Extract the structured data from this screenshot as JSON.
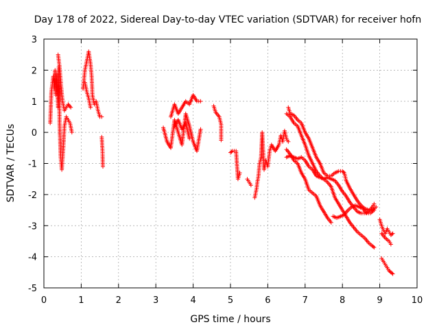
{
  "chart_data": {
    "type": "scatter",
    "title": "Day 178 of 2022, Sidereal Day-to-day VTEC variation (SDTVAR) for receiver hofn",
    "xlabel": "GPS time / hours",
    "ylabel": "SDTVAR / TECUs",
    "xlim": [
      0,
      10
    ],
    "ylim": [
      -5,
      3
    ],
    "x_ticks": [
      "0",
      "1",
      "2",
      "3",
      "4",
      "5",
      "6",
      "7",
      "8",
      "9",
      "10"
    ],
    "y_ticks": [
      "-5",
      "-4",
      "-3",
      "-2",
      "-1",
      "0",
      "1",
      "2",
      "3"
    ],
    "grid": true,
    "marker": "+",
    "series": [
      {
        "name": "SDTVAR",
        "color": "#ff0000",
        "segments": [
          [
            [
              0.17,
              0.3
            ],
            [
              0.2,
              1.3
            ],
            [
              0.22,
              1.5
            ],
            [
              0.25,
              1.8
            ],
            [
              0.28,
              1.4
            ],
            [
              0.3,
              2.0
            ],
            [
              0.32,
              1.2
            ],
            [
              0.35,
              1.9
            ],
            [
              0.38,
              0.8
            ],
            [
              0.4,
              2.1
            ],
            [
              0.42,
              0.3
            ],
            [
              0.45,
              -0.8
            ],
            [
              0.48,
              -1.2
            ],
            [
              0.52,
              -0.5
            ],
            [
              0.55,
              0.2
            ],
            [
              0.6,
              0.5
            ],
            [
              0.65,
              0.4
            ],
            [
              0.7,
              0.3
            ],
            [
              0.75,
              0.0
            ]
          ],
          [
            [
              0.38,
              2.5
            ],
            [
              0.42,
              2.1
            ],
            [
              0.46,
              1.5
            ],
            [
              0.5,
              1.0
            ],
            [
              0.55,
              0.7
            ],
            [
              0.6,
              0.8
            ],
            [
              0.65,
              0.9
            ],
            [
              0.72,
              0.8
            ]
          ],
          [
            [
              1.05,
              1.4
            ],
            [
              1.1,
              2.0
            ],
            [
              1.15,
              2.3
            ],
            [
              1.2,
              2.6
            ],
            [
              1.25,
              2.2
            ],
            [
              1.28,
              1.8
            ],
            [
              1.3,
              1.2
            ],
            [
              1.35,
              0.9
            ],
            [
              1.4,
              1.0
            ],
            [
              1.45,
              0.7
            ],
            [
              1.5,
              0.5
            ],
            [
              1.55,
              0.5
            ]
          ],
          [
            [
              1.1,
              1.6
            ],
            [
              1.15,
              1.3
            ],
            [
              1.2,
              1.1
            ],
            [
              1.25,
              0.8
            ]
          ],
          [
            [
              1.55,
              -0.15
            ],
            [
              1.57,
              -0.6
            ],
            [
              1.58,
              -1.1
            ]
          ],
          [
            [
              3.2,
              0.15
            ],
            [
              3.3,
              -0.3
            ],
            [
              3.4,
              -0.5
            ],
            [
              3.5,
              0.4
            ],
            [
              3.6,
              0.0
            ],
            [
              3.7,
              -0.4
            ],
            [
              3.8,
              0.6
            ],
            [
              3.9,
              0.2
            ],
            [
              4.0,
              -0.3
            ],
            [
              4.1,
              -0.6
            ],
            [
              4.2,
              0.1
            ]
          ],
          [
            [
              3.4,
              0.5
            ],
            [
              3.5,
              0.9
            ],
            [
              3.6,
              0.6
            ],
            [
              3.7,
              0.8
            ],
            [
              3.8,
              1.0
            ],
            [
              3.9,
              0.9
            ],
            [
              4.0,
              1.2
            ],
            [
              4.1,
              1.0
            ],
            [
              4.2,
              1.0
            ]
          ],
          [
            [
              3.5,
              0.2
            ],
            [
              3.6,
              0.4
            ],
            [
              3.7,
              0.1
            ],
            [
              3.8,
              0.3
            ],
            [
              3.9,
              -0.2
            ]
          ],
          [
            [
              4.55,
              0.85
            ],
            [
              4.6,
              0.65
            ],
            [
              4.7,
              0.5
            ],
            [
              4.75,
              0.25
            ],
            [
              4.75,
              -0.25
            ]
          ],
          [
            [
              5.0,
              -0.65
            ],
            [
              5.05,
              -0.6
            ],
            [
              5.15,
              -0.6
            ],
            [
              5.2,
              -1.5
            ],
            [
              5.25,
              -1.3
            ]
          ],
          [
            [
              5.45,
              -1.5
            ],
            [
              5.5,
              -1.6
            ],
            [
              5.55,
              -1.7
            ]
          ],
          [
            [
              5.65,
              -2.1
            ],
            [
              5.7,
              -1.8
            ],
            [
              5.72,
              -1.6
            ],
            [
              5.75,
              -1.4
            ],
            [
              5.78,
              -1.0
            ],
            [
              5.82,
              -0.8
            ],
            [
              5.85,
              0.0
            ],
            [
              5.9,
              -1.2
            ],
            [
              5.95,
              -0.9
            ],
            [
              6.0,
              -1.1
            ],
            [
              6.05,
              -0.6
            ],
            [
              6.1,
              -0.4
            ],
            [
              6.2,
              -0.6
            ],
            [
              6.3,
              -0.4
            ],
            [
              6.35,
              -0.1
            ],
            [
              6.4,
              -0.3
            ],
            [
              6.45,
              0.05
            ],
            [
              6.5,
              -0.2
            ],
            [
              6.55,
              -0.3
            ]
          ],
          [
            [
              6.5,
              0.6
            ],
            [
              6.6,
              0.5
            ],
            [
              6.7,
              0.3
            ],
            [
              6.8,
              0.2
            ],
            [
              6.9,
              -0.1
            ],
            [
              7.0,
              -0.4
            ],
            [
              7.1,
              -0.75
            ],
            [
              7.2,
              -1.0
            ],
            [
              7.3,
              -1.25
            ],
            [
              7.4,
              -1.4
            ],
            [
              7.5,
              -1.5
            ],
            [
              7.6,
              -1.6
            ],
            [
              7.7,
              -1.75
            ],
            [
              7.8,
              -2.1
            ],
            [
              7.9,
              -2.3
            ],
            [
              8.0,
              -2.5
            ],
            [
              8.1,
              -2.7
            ],
            [
              8.2,
              -2.9
            ],
            [
              8.3,
              -3.05
            ],
            [
              8.4,
              -3.2
            ],
            [
              8.5,
              -3.3
            ],
            [
              8.6,
              -3.4
            ],
            [
              8.7,
              -3.55
            ],
            [
              8.8,
              -3.65
            ],
            [
              8.85,
              -3.7
            ]
          ],
          [
            [
              6.55,
              0.8
            ],
            [
              6.6,
              0.6
            ],
            [
              6.7,
              0.55
            ],
            [
              6.8,
              0.4
            ],
            [
              6.9,
              0.3
            ],
            [
              7.0,
              0.0
            ],
            [
              7.1,
              -0.2
            ],
            [
              7.2,
              -0.5
            ],
            [
              7.3,
              -0.8
            ],
            [
              7.4,
              -1.0
            ],
            [
              7.5,
              -1.3
            ],
            [
              7.6,
              -1.4
            ],
            [
              7.7,
              -1.4
            ],
            [
              7.8,
              -1.3
            ],
            [
              7.9,
              -1.25
            ],
            [
              8.0,
              -1.25
            ],
            [
              8.05,
              -1.3
            ],
            [
              8.1,
              -1.55
            ],
            [
              8.2,
              -1.8
            ],
            [
              8.3,
              -2.0
            ],
            [
              8.4,
              -2.2
            ],
            [
              8.5,
              -2.35
            ],
            [
              8.6,
              -2.45
            ],
            [
              8.7,
              -2.5
            ],
            [
              8.8,
              -2.5
            ],
            [
              8.9,
              -2.4
            ]
          ],
          [
            [
              6.5,
              -0.8
            ],
            [
              6.6,
              -0.75
            ],
            [
              6.7,
              -0.8
            ],
            [
              6.8,
              -0.85
            ],
            [
              6.9,
              -0.8
            ],
            [
              7.0,
              -0.9
            ],
            [
              7.1,
              -1.1
            ],
            [
              7.2,
              -1.2
            ],
            [
              7.3,
              -1.4
            ],
            [
              7.4,
              -1.45
            ],
            [
              7.5,
              -1.5
            ],
            [
              7.6,
              -1.45
            ],
            [
              7.7,
              -1.5
            ],
            [
              7.8,
              -1.55
            ],
            [
              7.9,
              -1.7
            ],
            [
              8.0,
              -1.9
            ],
            [
              8.1,
              -2.05
            ],
            [
              8.2,
              -2.25
            ],
            [
              8.3,
              -2.4
            ],
            [
              8.4,
              -2.55
            ],
            [
              8.5,
              -2.6
            ],
            [
              8.6,
              -2.6
            ],
            [
              8.7,
              -2.55
            ],
            [
              8.8,
              -2.4
            ],
            [
              8.85,
              -2.3
            ]
          ],
          [
            [
              6.5,
              -0.55
            ],
            [
              6.6,
              -0.7
            ],
            [
              6.7,
              -0.9
            ],
            [
              6.8,
              -1.0
            ],
            [
              6.9,
              -1.3
            ],
            [
              7.0,
              -1.5
            ],
            [
              7.1,
              -1.85
            ],
            [
              7.2,
              -1.95
            ],
            [
              7.3,
              -2.05
            ],
            [
              7.4,
              -2.35
            ],
            [
              7.5,
              -2.55
            ],
            [
              7.6,
              -2.75
            ],
            [
              7.7,
              -2.9
            ]
          ],
          [
            [
              7.75,
              -2.7
            ],
            [
              7.85,
              -2.75
            ],
            [
              7.95,
              -2.7
            ],
            [
              8.05,
              -2.65
            ],
            [
              8.15,
              -2.5
            ],
            [
              8.25,
              -2.4
            ],
            [
              8.35,
              -2.35
            ],
            [
              8.45,
              -2.4
            ],
            [
              8.55,
              -2.45
            ],
            [
              8.65,
              -2.6
            ],
            [
              8.75,
              -2.6
            ],
            [
              8.85,
              -2.5
            ]
          ],
          [
            [
              9.0,
              -2.8
            ],
            [
              9.05,
              -3.0
            ],
            [
              9.1,
              -3.15
            ],
            [
              9.15,
              -3.25
            ],
            [
              9.2,
              -3.1
            ],
            [
              9.25,
              -3.2
            ],
            [
              9.3,
              -3.3
            ],
            [
              9.35,
              -3.25
            ]
          ],
          [
            [
              9.05,
              -3.25
            ],
            [
              9.15,
              -3.4
            ],
            [
              9.25,
              -3.5
            ],
            [
              9.3,
              -3.6
            ]
          ],
          [
            [
              9.05,
              -4.05
            ],
            [
              9.1,
              -4.15
            ],
            [
              9.15,
              -4.25
            ],
            [
              9.2,
              -4.35
            ],
            [
              9.25,
              -4.45
            ],
            [
              9.3,
              -4.5
            ],
            [
              9.35,
              -4.55
            ]
          ]
        ]
      }
    ]
  }
}
